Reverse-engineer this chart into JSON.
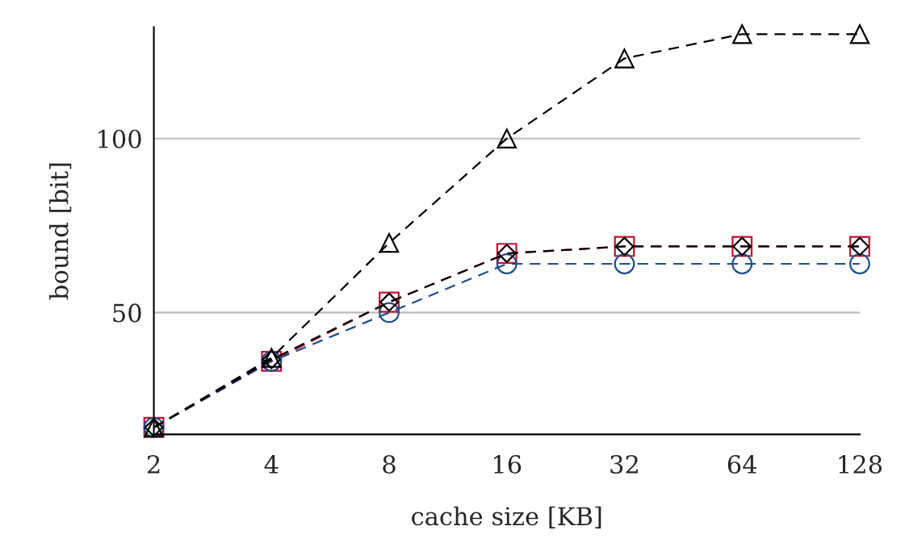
{
  "chart_data": {
    "type": "line",
    "xlabel": "cache size [KB]",
    "ylabel": "bound [bit]",
    "x": [
      2,
      4,
      8,
      16,
      32,
      64,
      128
    ],
    "series": [
      {
        "color": "#c8102e",
        "marker": "square",
        "values": [
          17,
          36,
          53,
          67,
          69,
          69,
          69
        ]
      },
      {
        "color": "#1f4e8c",
        "marker": "circle",
        "values": [
          17,
          36,
          50,
          64,
          64,
          64,
          64
        ]
      },
      {
        "color": "#000000",
        "marker": "diamond",
        "values": [
          17,
          36.5,
          53,
          67,
          69,
          69,
          69
        ]
      },
      {
        "color": "#000000",
        "marker": "triangle",
        "values": [
          17,
          37,
          70,
          100,
          123,
          130,
          130
        ]
      }
    ],
    "log": "x",
    "xlim": [
      2,
      128
    ],
    "xticks": [
      2,
      4,
      8,
      16,
      32,
      64,
      128
    ],
    "ylim": [
      15,
      132
    ],
    "yticks": [
      50,
      100
    ],
    "grid": "y",
    "line_style": "dashed",
    "legend": false
  }
}
